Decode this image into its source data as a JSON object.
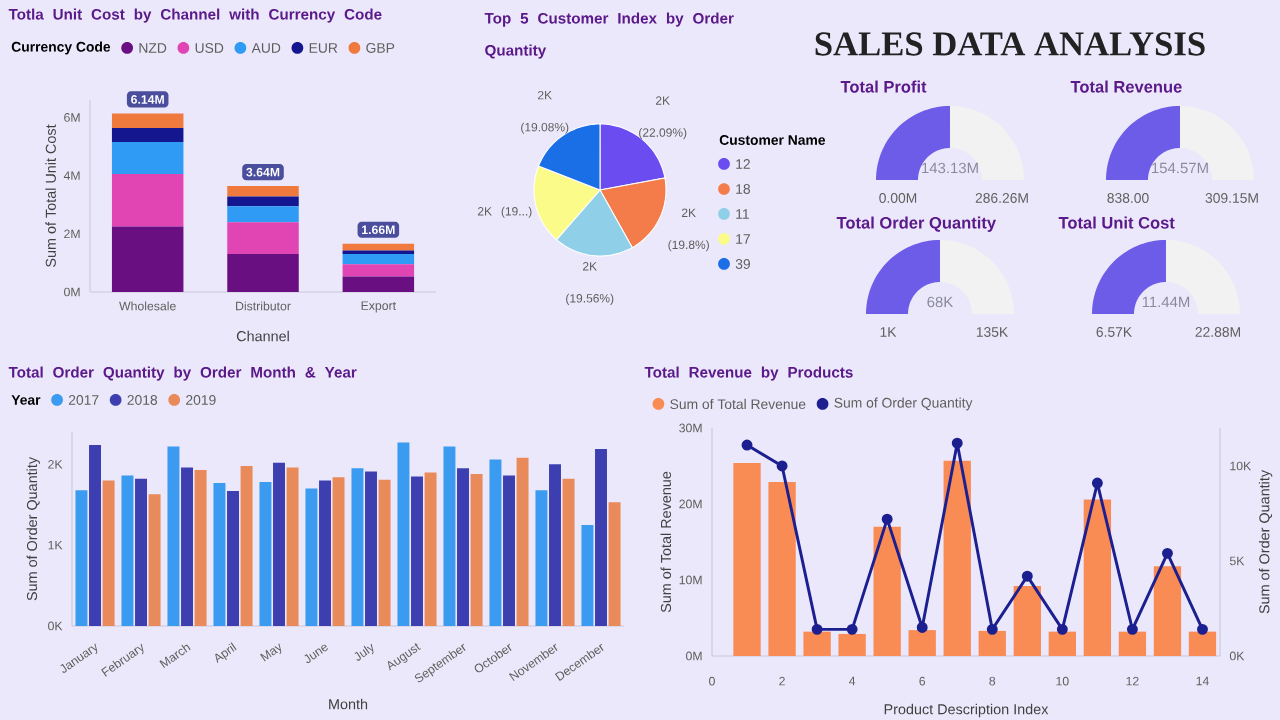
{
  "chart_data": [
    {
      "type": "bar",
      "stacked": true,
      "title": "Totla Unit Cost by Channel with Currency Code",
      "legend_title": "Currency Code",
      "legend": "top left",
      "xlabel": "Channel",
      "ylabel": "Sum of Total Unit Cost",
      "categories": [
        "Wholesale",
        "Distributor",
        "Export"
      ],
      "series": [
        {
          "name": "NZD",
          "color": "#6a0f82",
          "values": [
            2.25,
            1.31,
            0.53
          ]
        },
        {
          "name": "USD",
          "color": "#e145b4",
          "values": [
            1.81,
            1.09,
            0.42
          ]
        },
        {
          "name": "AUD",
          "color": "#2f9bf5",
          "values": [
            1.1,
            0.55,
            0.36
          ]
        },
        {
          "name": "EUR",
          "color": "#14168f",
          "values": [
            0.48,
            0.33,
            0.12
          ]
        },
        {
          "name": "GBP",
          "color": "#f07a3e",
          "values": [
            0.5,
            0.36,
            0.23
          ]
        }
      ],
      "totals": [
        "6.14M",
        "3.64M",
        "1.66M"
      ],
      "ylim": [
        0,
        6.6
      ],
      "yticks": [
        {
          "value": 0,
          "label": "0M"
        },
        {
          "value": 2,
          "label": "2M"
        },
        {
          "value": 4,
          "label": "4M"
        },
        {
          "value": 6,
          "label": "6M"
        }
      ]
    },
    {
      "type": "pie",
      "title": "Top 5 Customer Index by Order Quantity",
      "legend_title": "Customer Name",
      "legend": "right",
      "categories": [
        "12",
        "18",
        "11",
        "17",
        "39"
      ],
      "values": [
        22.09,
        19.8,
        19.56,
        19.47,
        19.08
      ],
      "colors": [
        "#6b4cf0",
        "#f47c4a",
        "#8fd0e8",
        "#fbfb8a",
        "#1a6fe6"
      ],
      "value_labels": [
        "2K (22.09%)",
        "2K (19.8%)",
        "2K (19.56%)",
        "2K (19...)",
        "2K (19.08%)"
      ]
    },
    {
      "type": "other",
      "title": "SALES DATA ANALYSIS"
    },
    {
      "type": "donut",
      "title": "Total Profit",
      "categories": [
        null,
        null
      ],
      "values": [
        50,
        50
      ],
      "colors": [
        "#6c5ce7",
        "#f2f2f2"
      ],
      "annotations": [
        "143.13M",
        "0.00M",
        "286.26M"
      ]
    },
    {
      "type": "donut",
      "title": "Total Revenue",
      "categories": [
        null,
        null
      ],
      "values": [
        50,
        50
      ],
      "colors": [
        "#6c5ce7",
        "#f2f2f2"
      ],
      "annotations": [
        "154.57M",
        "838.00",
        "309.15M"
      ]
    },
    {
      "type": "donut",
      "title": "Total Order Quantity",
      "categories": [
        null,
        null
      ],
      "values": [
        50,
        50
      ],
      "colors": [
        "#6c5ce7",
        "#f2f2f2"
      ],
      "annotations": [
        "68K",
        "1K",
        "135K"
      ]
    },
    {
      "type": "donut",
      "title": "Total Unit Cost",
      "categories": [
        null,
        null
      ],
      "values": [
        50,
        50
      ],
      "colors": [
        "#6c5ce7",
        "#f2f2f2"
      ],
      "annotations": [
        "11.44M",
        "6.57K",
        "22.88M"
      ]
    },
    {
      "type": "bar",
      "title": "Total Order Quantity by Order Month & Year",
      "legend_title": "Year",
      "legend": "top left",
      "xlabel": "Month",
      "ylabel": "Sum of Order Quantity",
      "categories": [
        "January",
        "February",
        "March",
        "April",
        "May",
        "June",
        "July",
        "August",
        "September",
        "October",
        "November",
        "December"
      ],
      "series": [
        {
          "name": "2017",
          "color": "#3a9bf0",
          "values": [
            1680,
            1860,
            2220,
            1770,
            1780,
            1700,
            1950,
            2270,
            2220,
            2060,
            1680,
            1250
          ]
        },
        {
          "name": "2018",
          "color": "#3d3fb0",
          "values": [
            2240,
            1820,
            1960,
            1670,
            2020,
            1800,
            1910,
            1850,
            1950,
            1860,
            2000,
            2190
          ]
        },
        {
          "name": "2019",
          "color": "#e98a5a",
          "values": [
            1800,
            1630,
            1930,
            1980,
            1960,
            1840,
            1810,
            1900,
            1880,
            2080,
            1820,
            1530
          ]
        }
      ],
      "ylim": [
        0,
        2400
      ],
      "yticks": [
        {
          "value": 0,
          "label": "0K"
        },
        {
          "value": 1000,
          "label": "1K"
        },
        {
          "value": 2000,
          "label": "2K"
        }
      ]
    },
    {
      "type": "bar",
      "title": "Total Revenue by Products",
      "legend": "top left",
      "xlabel": "Product Description Index",
      "ylabel": "Sum of Total Revenue",
      "y2label": "Sum of Order Quantity",
      "x": [
        1,
        2,
        3,
        4,
        5,
        6,
        7,
        8,
        9,
        10,
        11,
        12,
        13,
        14
      ],
      "series": [
        {
          "name": "Sum of Total Revenue",
          "color": "#f98b55",
          "values": [
            25.4,
            22.9,
            3.2,
            2.9,
            17.0,
            3.4,
            25.7,
            3.3,
            9.2,
            3.2,
            20.6,
            3.2,
            11.8,
            3.2
          ]
        },
        {
          "name": "Sum of Order Quantity",
          "type": "line",
          "axis": "y2",
          "marker": "circle",
          "color": "#1b1f8f",
          "values": [
            11100,
            10000,
            1400,
            1400,
            7200,
            1500,
            11200,
            1400,
            4200,
            1400,
            9100,
            1400,
            5400,
            1400
          ]
        }
      ],
      "xlim": [
        0,
        14.5
      ],
      "xticks": [
        0,
        2,
        4,
        6,
        8,
        10,
        12,
        14
      ],
      "ylim": [
        0,
        30
      ],
      "yticks": [
        {
          "value": 0,
          "label": "0M"
        },
        {
          "value": 10,
          "label": "10M"
        },
        {
          "value": 20,
          "label": "20M"
        },
        {
          "value": 30,
          "label": "30M"
        }
      ],
      "y2lim": [
        0,
        12000
      ],
      "y2ticks": [
        {
          "value": 0,
          "label": "0K"
        },
        {
          "value": 5000,
          "label": "5K"
        },
        {
          "value": 10000,
          "label": "10K"
        }
      ]
    }
  ]
}
